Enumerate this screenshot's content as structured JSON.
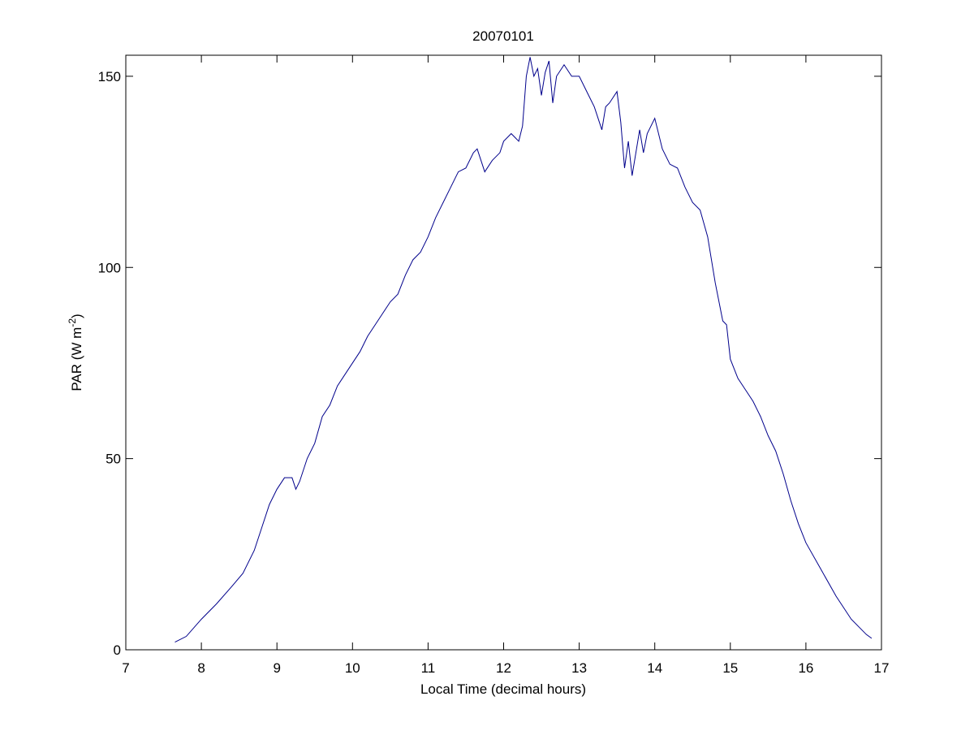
{
  "chart_data": {
    "type": "line",
    "title": "20070101",
    "xlabel": "Local Time (decimal hours)",
    "ylabel": {
      "text": "PAR (W m",
      "superscript": "-2",
      "suffix": ")"
    },
    "xlim": [
      7,
      17
    ],
    "xticks": [
      7,
      8,
      9,
      10,
      11,
      12,
      13,
      14,
      15,
      16,
      17
    ],
    "ylim": [
      0,
      155.5
    ],
    "yticks": [
      0,
      50,
      100,
      150
    ],
    "grid": false,
    "series": [
      {
        "color": "#00008b",
        "x": [
          7.65,
          7.8,
          8.0,
          8.2,
          8.4,
          8.55,
          8.7,
          8.8,
          8.9,
          9.0,
          9.1,
          9.2,
          9.25,
          9.3,
          9.4,
          9.5,
          9.6,
          9.7,
          9.8,
          9.9,
          10.0,
          10.1,
          10.2,
          10.3,
          10.4,
          10.5,
          10.6,
          10.7,
          10.8,
          10.9,
          11.0,
          11.1,
          11.2,
          11.3,
          11.4,
          11.5,
          11.6,
          11.65,
          11.7,
          11.75,
          11.85,
          11.95,
          12.0,
          12.1,
          12.2,
          12.25,
          12.3,
          12.35,
          12.4,
          12.45,
          12.5,
          12.55,
          12.6,
          12.65,
          12.7,
          12.8,
          12.9,
          13.0,
          13.1,
          13.2,
          13.3,
          13.35,
          13.4,
          13.5,
          13.55,
          13.6,
          13.65,
          13.7,
          13.8,
          13.85,
          13.9,
          14.0,
          14.1,
          14.2,
          14.3,
          14.4,
          14.5,
          14.6,
          14.7,
          14.8,
          14.9,
          14.95,
          15.0,
          15.1,
          15.2,
          15.3,
          15.4,
          15.5,
          15.6,
          15.7,
          15.8,
          15.9,
          16.0,
          16.2,
          16.4,
          16.6,
          16.8,
          16.87
        ],
        "values": [
          2,
          3.5,
          8,
          12,
          16.5,
          20,
          26,
          32,
          38,
          42,
          45,
          45,
          42,
          44,
          50,
          54,
          61,
          64,
          69,
          72,
          75,
          78,
          82,
          85,
          88,
          91,
          93,
          98,
          102,
          104,
          108,
          113,
          117,
          121,
          125,
          126,
          130,
          131,
          128,
          125,
          128,
          130,
          133,
          135,
          133,
          137,
          150,
          155,
          150,
          152,
          145,
          151,
          154,
          143,
          150,
          153,
          150,
          150,
          146,
          142,
          136,
          142,
          143,
          146,
          138,
          126,
          133,
          124,
          136,
          130,
          135,
          139,
          131,
          127,
          126,
          121,
          117,
          115,
          108,
          96,
          86,
          85,
          76,
          71,
          68,
          65,
          61,
          56,
          52,
          46,
          39,
          33,
          28,
          21,
          14,
          8,
          4,
          3
        ]
      }
    ]
  }
}
